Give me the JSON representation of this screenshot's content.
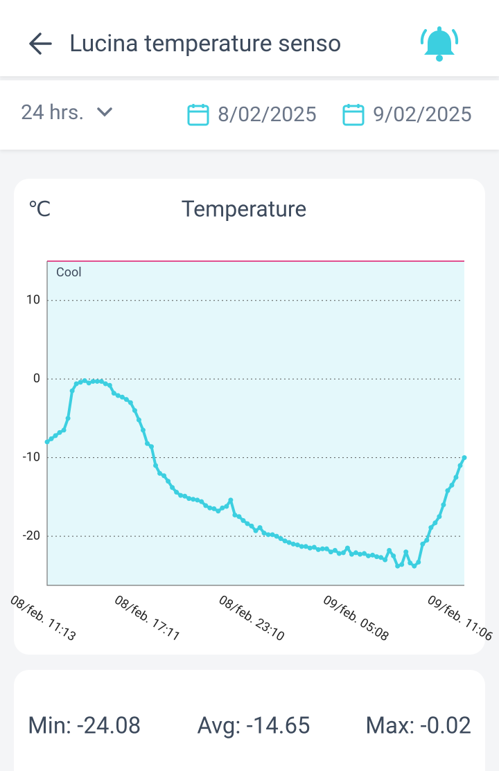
{
  "header": {
    "title": "Lucina temperature senso"
  },
  "filters": {
    "range": "24 hrs.",
    "from": "8/02/2025",
    "to": "9/02/2025"
  },
  "chart_data": {
    "type": "line",
    "title": "Temperature",
    "y_label": "℃",
    "categories": [
      "08/feb. 11:13",
      null,
      null,
      null,
      null,
      null,
      null,
      null,
      null,
      null,
      null,
      null,
      null,
      null,
      null,
      null,
      null,
      null,
      null,
      null,
      null,
      null,
      null,
      null,
      null,
      "08/feb. 17:11",
      null,
      null,
      null,
      null,
      null,
      null,
      null,
      null,
      null,
      null,
      null,
      null,
      null,
      null,
      null,
      null,
      null,
      null,
      null,
      null,
      null,
      null,
      null,
      null,
      "08/feb. 23:10",
      null,
      null,
      null,
      null,
      null,
      null,
      null,
      null,
      null,
      null,
      null,
      null,
      null,
      null,
      null,
      null,
      null,
      null,
      null,
      null,
      null,
      null,
      null,
      null,
      "09/feb. 05:08",
      null,
      null,
      null,
      null,
      null,
      null,
      null,
      null,
      null,
      null,
      null,
      null,
      null,
      null,
      null,
      null,
      null,
      null,
      null,
      null,
      null,
      null,
      null,
      null,
      "09/feb. 11:06"
    ],
    "series": [
      {
        "name": "Temperature",
        "color": "#3ccfe0",
        "values": [
          -8.0,
          -7.6,
          -7.2,
          -6.8,
          -6.5,
          -5.0,
          -1.5,
          -0.6,
          -0.4,
          -0.2,
          -0.5,
          -0.3,
          -0.3,
          -0.3,
          -0.6,
          -0.8,
          -1.8,
          -2.1,
          -2.3,
          -2.6,
          -3.0,
          -4.0,
          -5.2,
          -6.5,
          -8.2,
          -8.6,
          -11.0,
          -12.0,
          -12.3,
          -13.0,
          -13.8,
          -14.4,
          -14.8,
          -14.9,
          -15.2,
          -15.3,
          -15.4,
          -15.6,
          -16.1,
          -16.4,
          -16.5,
          -16.8,
          -16.4,
          -16.2,
          -15.4,
          -17.3,
          -17.5,
          -18.0,
          -18.4,
          -18.7,
          -19.3,
          -18.9,
          -19.6,
          -19.8,
          -19.8,
          -20.0,
          -20.3,
          -20.6,
          -20.8,
          -21.0,
          -21.1,
          -21.3,
          -21.3,
          -21.5,
          -21.4,
          -21.7,
          -21.6,
          -21.6,
          -22.0,
          -21.8,
          -22.2,
          -22.1,
          -21.5,
          -22.3,
          -22.1,
          -22.3,
          -22.2,
          -22.5,
          -22.4,
          -22.6,
          -22.7,
          -23.0,
          -21.8,
          -22.5,
          -23.8,
          -23.6,
          -22.0,
          -23.4,
          -23.8,
          -23.3,
          -21.0,
          -20.5,
          -18.9,
          -18.3,
          -17.5,
          -16.0,
          -14.2,
          -13.5,
          -12.5,
          -11.0,
          -10.0
        ]
      }
    ],
    "ylim": [
      -26.25,
      15
    ],
    "yticks": [
      -20,
      -10,
      0,
      10
    ],
    "grid": true,
    "threshold": {
      "value": 15,
      "label": "Cool",
      "color": "#e0508f",
      "fill": "#e4f8fb"
    }
  },
  "stats": {
    "min": "Min: -24.08",
    "avg": "Avg: -14.65",
    "max": "Max: -0.02"
  }
}
